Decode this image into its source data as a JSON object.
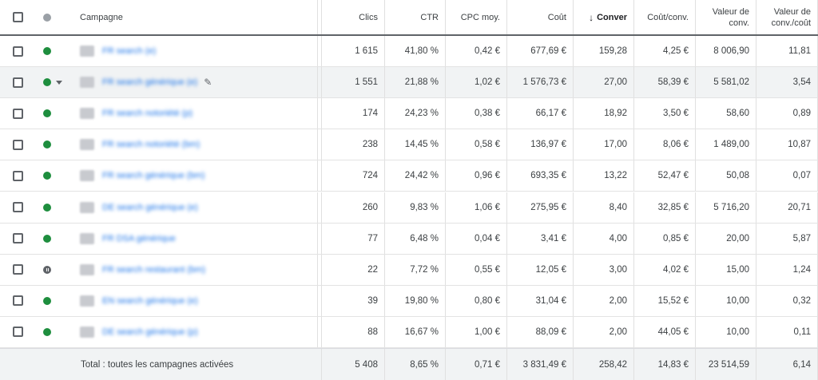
{
  "table": {
    "headers": {
      "campaign": "Campagne",
      "clicks": "Clics",
      "ctr": "CTR",
      "cpc": "CPC moy.",
      "cost": "Coût",
      "conversions": "Conver",
      "cost_per_conv": "Coût/conv.",
      "conv_value_line1": "Valeur de",
      "conv_value_line2": "conv.",
      "value_cost_line1": "Valeur de",
      "value_cost_line2": "conv./coût"
    },
    "sort_icon": "arrow-down-icon",
    "rows": [
      {
        "name": "FR search (e)",
        "status": "active",
        "clicks": "1 615",
        "ctr": "41,80 %",
        "cpc": "0,42 €",
        "cost": "677,69 €",
        "conv": "159,28",
        "cpa": "4,25 €",
        "value": "8 006,90",
        "roas": "11,81"
      },
      {
        "name": "FR search générique (e)",
        "status": "active",
        "clicks": "1 551",
        "ctr": "21,88 %",
        "cpc": "1,02 €",
        "cost": "1 576,73 €",
        "conv": "27,00",
        "cpa": "58,39 €",
        "value": "5 581,02",
        "roas": "3,54"
      },
      {
        "name": "FR search notoriété (p)",
        "status": "active",
        "clicks": "174",
        "ctr": "24,23 %",
        "cpc": "0,38 €",
        "cost": "66,17 €",
        "conv": "18,92",
        "cpa": "3,50 €",
        "value": "58,60",
        "roas": "0,89"
      },
      {
        "name": "FR search notoriété (bm)",
        "status": "active",
        "clicks": "238",
        "ctr": "14,45 %",
        "cpc": "0,58 €",
        "cost": "136,97 €",
        "conv": "17,00",
        "cpa": "8,06 €",
        "value": "1 489,00",
        "roas": "10,87"
      },
      {
        "name": "FR search générique (bm)",
        "status": "active",
        "clicks": "724",
        "ctr": "24,42 %",
        "cpc": "0,96 €",
        "cost": "693,35 €",
        "conv": "13,22",
        "cpa": "52,47 €",
        "value": "50,08",
        "roas": "0,07"
      },
      {
        "name": "DE search générique (e)",
        "status": "active",
        "clicks": "260",
        "ctr": "9,83 %",
        "cpc": "1,06 €",
        "cost": "275,95 €",
        "conv": "8,40",
        "cpa": "32,85 €",
        "value": "5 716,20",
        "roas": "20,71"
      },
      {
        "name": "FR DSA générique",
        "status": "active",
        "clicks": "77",
        "ctr": "6,48 %",
        "cpc": "0,04 €",
        "cost": "3,41 €",
        "conv": "4,00",
        "cpa": "0,85 €",
        "value": "20,00",
        "roas": "5,87"
      },
      {
        "name": "FR search restaurant (bm)",
        "status": "paused",
        "clicks": "22",
        "ctr": "7,72 %",
        "cpc": "0,55 €",
        "cost": "12,05 €",
        "conv": "3,00",
        "cpa": "4,02 €",
        "value": "15,00",
        "roas": "1,24"
      },
      {
        "name": "EN search générique (e)",
        "status": "active",
        "clicks": "39",
        "ctr": "19,80 %",
        "cpc": "0,80 €",
        "cost": "31,04 €",
        "conv": "2,00",
        "cpa": "15,52 €",
        "value": "10,00",
        "roas": "0,32"
      },
      {
        "name": "DE search générique (p)",
        "status": "active",
        "clicks": "88",
        "ctr": "16,67 %",
        "cpc": "1,00 €",
        "cost": "88,09 €",
        "conv": "2,00",
        "cpa": "44,05 €",
        "value": "10,00",
        "roas": "0,11"
      }
    ],
    "total": {
      "label": "Total : toutes les campagnes activées",
      "clicks": "5 408",
      "ctr": "8,65 %",
      "cpc": "0,71 €",
      "cost": "3 831,49 €",
      "conv": "258,42",
      "cpa": "14,83 €",
      "value": "23 514,59",
      "roas": "6,14"
    }
  },
  "colors": {
    "active": "#1e8e3e",
    "paused": "#5f6368",
    "link": "#1a73e8"
  }
}
